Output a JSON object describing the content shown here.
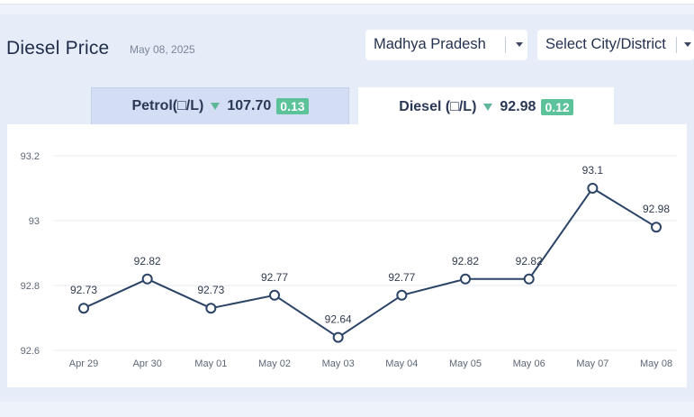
{
  "header": {
    "title": "Diesel Price",
    "date": "May 08, 2025",
    "state_select": "Madhya Pradesh",
    "city_select": "Select City/District"
  },
  "tabs": [
    {
      "label": "Petrol(□/L)",
      "price": "107.70",
      "change": "0.13"
    },
    {
      "label": "Diesel (□/L)",
      "price": "92.98",
      "change": "0.12"
    }
  ],
  "colors": {
    "line": "#2b4466",
    "grid": "#e4e8ef",
    "badge": "#5cc29a",
    "arrow": "#5fb79a"
  },
  "chart_data": {
    "type": "line",
    "categories": [
      "Apr 29",
      "Apr 30",
      "May 01",
      "May 02",
      "May 03",
      "May 04",
      "May 05",
      "May 06",
      "May 07",
      "May 08"
    ],
    "values": [
      92.73,
      92.82,
      92.73,
      92.77,
      92.64,
      92.77,
      92.82,
      92.82,
      93.1,
      92.98
    ],
    "data_labels": [
      "92.73",
      "92.82",
      "92.73",
      "92.77",
      "92.64",
      "92.77",
      "92.82",
      "92.82",
      "93.1",
      "92.98"
    ],
    "y_ticks": [
      92.6,
      92.8,
      93,
      93.2
    ],
    "y_tick_labels": [
      "92.6",
      "92.8",
      "93",
      "93.2"
    ],
    "ylim": [
      92.6,
      93.2
    ],
    "grid": true,
    "legend": "none"
  }
}
